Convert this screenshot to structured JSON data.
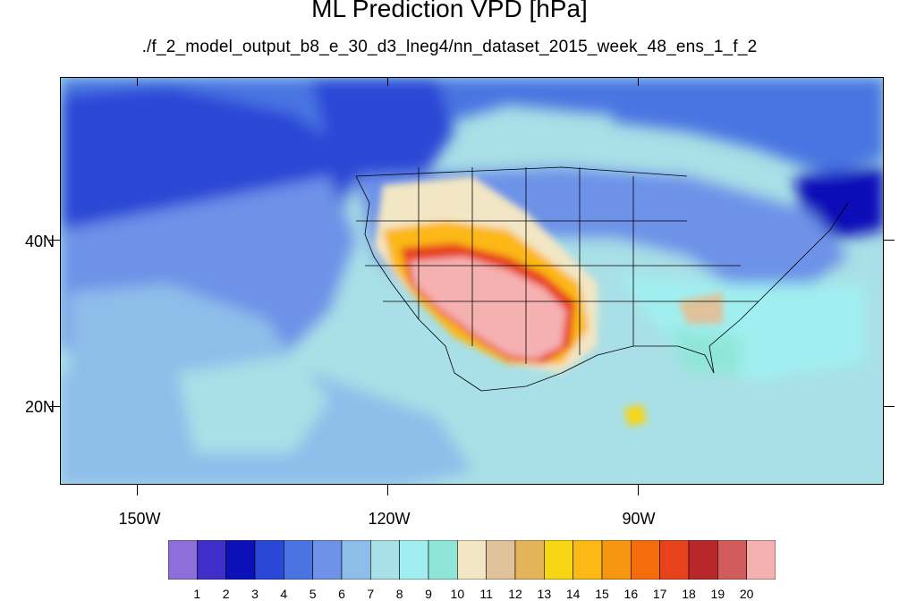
{
  "title": "ML Prediction VPD [hPa]",
  "subtitle": "./f_2_model_output_b8_e_30_d3_lneg4/nn_dataset_2015_week_48_ens_1_f_2",
  "axes": {
    "lat_labels": [
      "40N",
      "20N"
    ],
    "lon_labels": [
      "150W",
      "120W",
      "90W"
    ]
  },
  "colorbar": {
    "labels": [
      "1",
      "2",
      "3",
      "4",
      "5",
      "6",
      "7",
      "8",
      "9",
      "10",
      "11",
      "12",
      "13",
      "14",
      "15",
      "16",
      "17",
      "18",
      "19",
      "20"
    ],
    "colors": [
      "#8c6fd8",
      "#3f2fc8",
      "#0c10b8",
      "#2b47d6",
      "#4a74e2",
      "#6d92e8",
      "#8fbdea",
      "#a9dfe6",
      "#a1eef0",
      "#8fe6d8",
      "#f2e6c4",
      "#dfc19a",
      "#e4b45a",
      "#f7d614",
      "#fcb815",
      "#f79611",
      "#f46c0c",
      "#e8421d",
      "#b8272a",
      "#d25b5b",
      "#f5b0b0"
    ]
  },
  "legend_title": "VPD [hPa]"
}
